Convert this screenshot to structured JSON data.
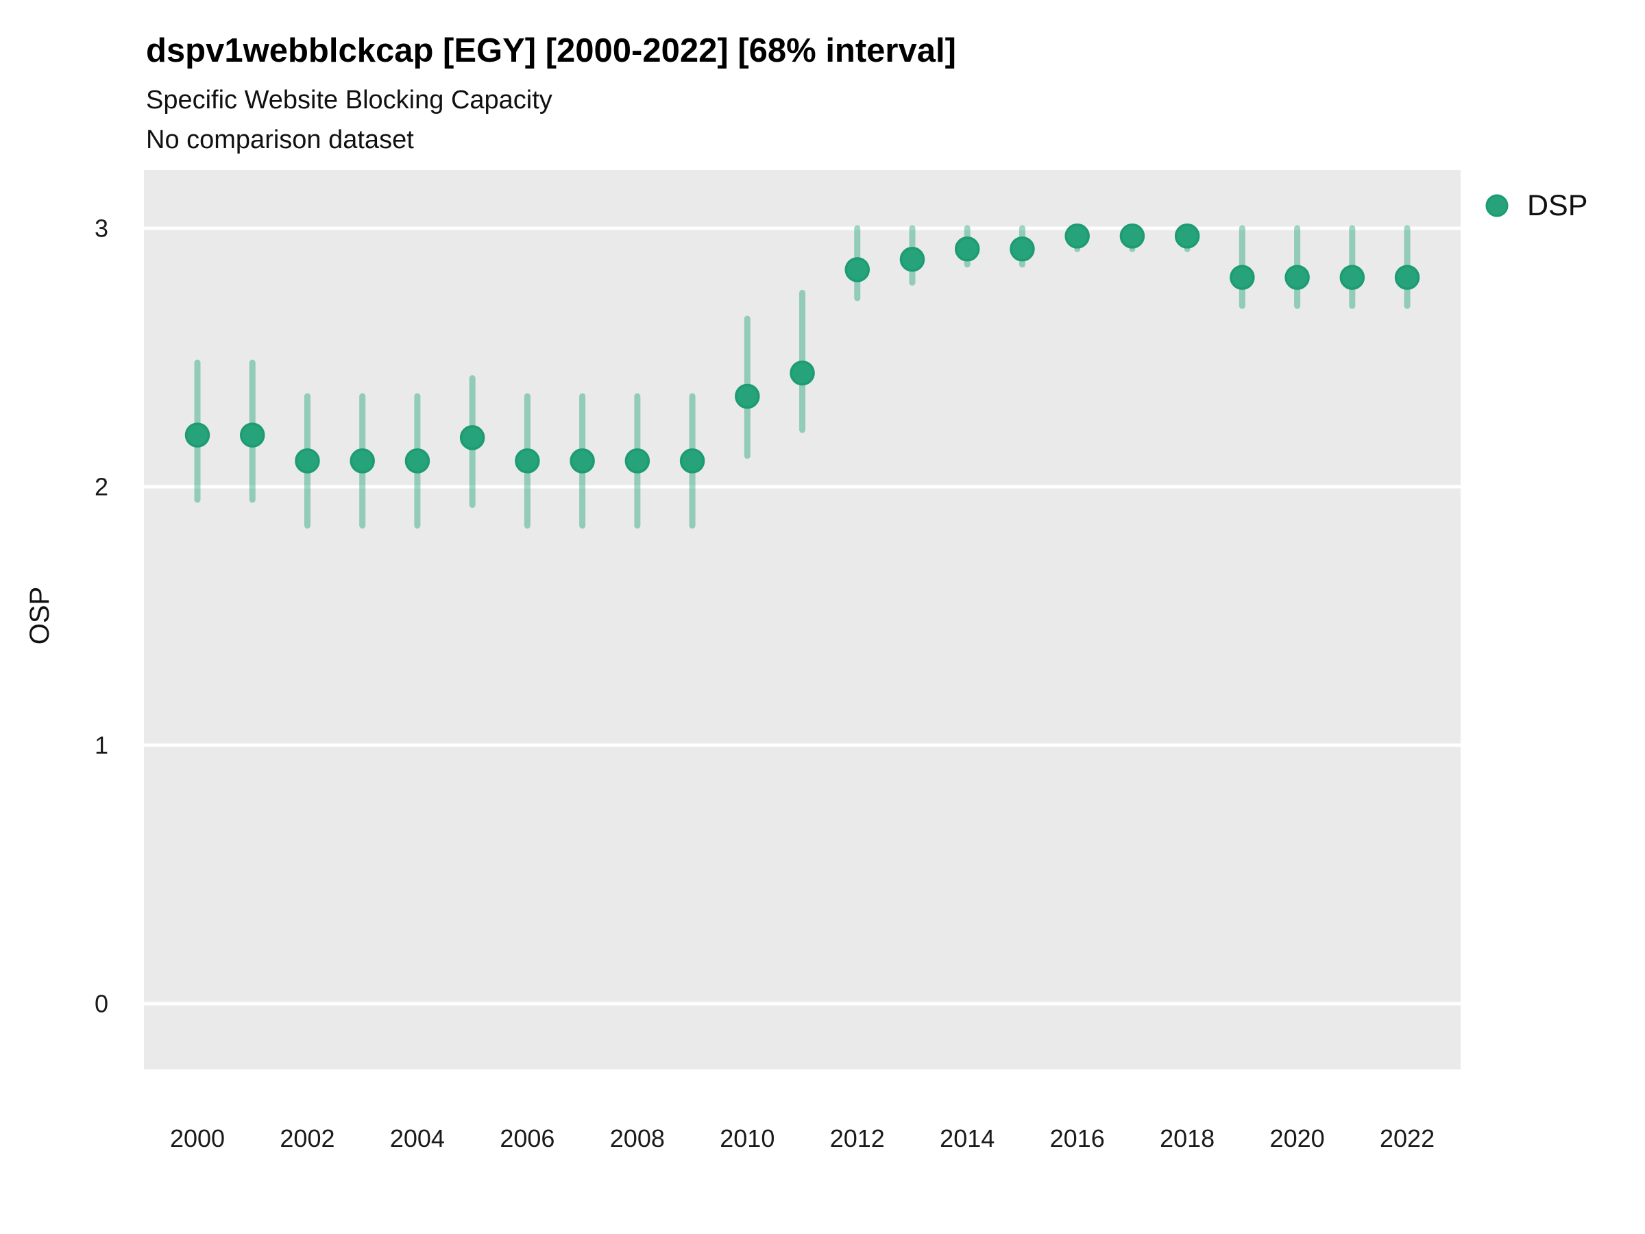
{
  "header": {
    "title": "dspv1webblckcap [EGY] [2000-2022] [68% interval]",
    "subtitle": "Specific Website Blocking Capacity",
    "comparison_note": "No comparison dataset"
  },
  "legend": {
    "label": "DSP"
  },
  "colors": {
    "panel_bg": "#EAEAEA",
    "grid": "#FFFFFF",
    "interval_bar": "rgba(40,167,123,0.45)",
    "point_fill": "#26A37A",
    "point_stroke": "#1D9C71",
    "text": "#111111"
  },
  "chart_data": {
    "type": "scatter",
    "title": "dspv1webblckcap [EGY] [2000-2022] [68% interval]",
    "subtitle": "Specific Website Blocking Capacity",
    "note": "No comparison dataset",
    "xlabel": "",
    "ylabel": "OSP",
    "interval": "68%",
    "legend_entries": [
      "DSP"
    ],
    "legend_position": "right-top",
    "grid": "major horizontal white lines on grey panel",
    "xlim": [
      1999,
      2023
    ],
    "ylim": [
      -0.26,
      3.23
    ],
    "x_ticks": [
      2000,
      2002,
      2004,
      2006,
      2008,
      2010,
      2012,
      2014,
      2016,
      2018,
      2020,
      2022
    ],
    "y_ticks": [
      0,
      1,
      2,
      3
    ],
    "series": [
      {
        "name": "DSP",
        "points": [
          {
            "year": 2000,
            "est": 2.2,
            "lo": 1.95,
            "hi": 2.48
          },
          {
            "year": 2001,
            "est": 2.2,
            "lo": 1.95,
            "hi": 2.48
          },
          {
            "year": 2002,
            "est": 2.1,
            "lo": 1.85,
            "hi": 2.35
          },
          {
            "year": 2003,
            "est": 2.1,
            "lo": 1.85,
            "hi": 2.35
          },
          {
            "year": 2004,
            "est": 2.1,
            "lo": 1.85,
            "hi": 2.35
          },
          {
            "year": 2005,
            "est": 2.19,
            "lo": 1.93,
            "hi": 2.42
          },
          {
            "year": 2006,
            "est": 2.1,
            "lo": 1.85,
            "hi": 2.35
          },
          {
            "year": 2007,
            "est": 2.1,
            "lo": 1.85,
            "hi": 2.35
          },
          {
            "year": 2008,
            "est": 2.1,
            "lo": 1.85,
            "hi": 2.35
          },
          {
            "year": 2009,
            "est": 2.1,
            "lo": 1.85,
            "hi": 2.35
          },
          {
            "year": 2010,
            "est": 2.35,
            "lo": 2.12,
            "hi": 2.65
          },
          {
            "year": 2011,
            "est": 2.44,
            "lo": 2.22,
            "hi": 2.75
          },
          {
            "year": 2012,
            "est": 2.84,
            "lo": 2.73,
            "hi": 3.0
          },
          {
            "year": 2013,
            "est": 2.88,
            "lo": 2.79,
            "hi": 3.0
          },
          {
            "year": 2014,
            "est": 2.92,
            "lo": 2.86,
            "hi": 3.0
          },
          {
            "year": 2015,
            "est": 2.92,
            "lo": 2.86,
            "hi": 3.0
          },
          {
            "year": 2016,
            "est": 2.97,
            "lo": 2.92,
            "hi": 3.0
          },
          {
            "year": 2017,
            "est": 2.97,
            "lo": 2.92,
            "hi": 3.0
          },
          {
            "year": 2018,
            "est": 2.97,
            "lo": 2.92,
            "hi": 3.0
          },
          {
            "year": 2019,
            "est": 2.81,
            "lo": 2.7,
            "hi": 3.0
          },
          {
            "year": 2020,
            "est": 2.81,
            "lo": 2.7,
            "hi": 3.0
          },
          {
            "year": 2021,
            "est": 2.81,
            "lo": 2.7,
            "hi": 3.0
          },
          {
            "year": 2022,
            "est": 2.81,
            "lo": 2.7,
            "hi": 3.0
          }
        ]
      }
    ]
  }
}
